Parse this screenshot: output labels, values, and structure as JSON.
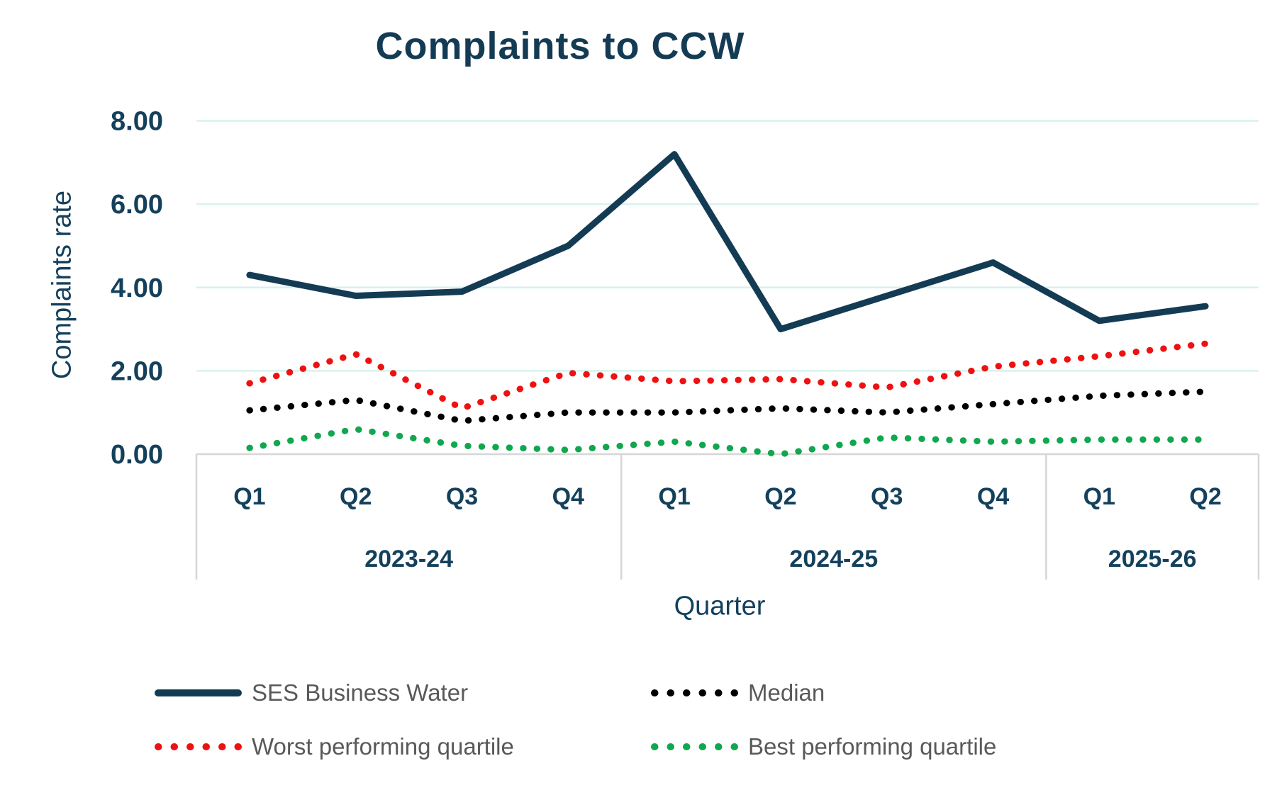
{
  "chart": {
    "title": "Complaints to CCW",
    "y_axis_title": "Complaints rate",
    "x_axis_title": "Quarter"
  },
  "chart_data": {
    "type": "line",
    "title": "Complaints to CCW",
    "xlabel": "Quarter",
    "ylabel": "Complaints rate",
    "ylim": [
      0,
      8
    ],
    "y_ticks": [
      {
        "value": 8,
        "label": "8.00"
      },
      {
        "value": 6,
        "label": "6.00"
      },
      {
        "value": 4,
        "label": "4.00"
      },
      {
        "value": 2,
        "label": "2.00"
      },
      {
        "value": 0,
        "label": "0.00"
      }
    ],
    "grid": "horizontal",
    "gridline_color": "#d6f2ef",
    "axis_line_color": "#d6d6d6",
    "axis_label_color": "#14405c",
    "legend_text_color": "#595959",
    "legend_position": "bottom",
    "categories": [
      "Q1",
      "Q2",
      "Q3",
      "Q4",
      "Q1",
      "Q2",
      "Q3",
      "Q4",
      "Q1",
      "Q2"
    ],
    "year_groups": [
      {
        "label": "2023-24",
        "start_index": 0,
        "count": 4
      },
      {
        "label": "2024-25",
        "start_index": 4,
        "count": 4
      },
      {
        "label": "2025-26",
        "start_index": 8,
        "count": 2
      }
    ],
    "series": [
      {
        "name": "SES Business Water",
        "style": "solid",
        "color": "#143b54",
        "values": [
          4.3,
          3.8,
          3.9,
          5.0,
          7.2,
          3.0,
          3.8,
          4.6,
          3.2,
          3.55
        ]
      },
      {
        "name": "Median",
        "style": "dotted",
        "color": "#000000",
        "values": [
          1.05,
          1.3,
          0.8,
          1.0,
          1.0,
          1.1,
          1.0,
          1.2,
          1.4,
          1.5
        ]
      },
      {
        "name": "Worst performing quartile",
        "style": "dotted",
        "color": "#ee1111",
        "values": [
          1.7,
          2.4,
          1.1,
          1.95,
          1.75,
          1.8,
          1.6,
          2.1,
          2.35,
          2.65
        ]
      },
      {
        "name": "Best performing quartile",
        "style": "dotted",
        "color": "#10a74f",
        "values": [
          0.15,
          0.6,
          0.2,
          0.1,
          0.3,
          0.0,
          0.4,
          0.3,
          0.35,
          0.35
        ]
      }
    ],
    "legend_layout": [
      {
        "series": "SES Business Water",
        "row": 0,
        "col": 0
      },
      {
        "series": "Median",
        "row": 0,
        "col": 1
      },
      {
        "series": "Worst performing quartile",
        "row": 1,
        "col": 0
      },
      {
        "series": "Best performing quartile",
        "row": 1,
        "col": 1
      }
    ]
  }
}
